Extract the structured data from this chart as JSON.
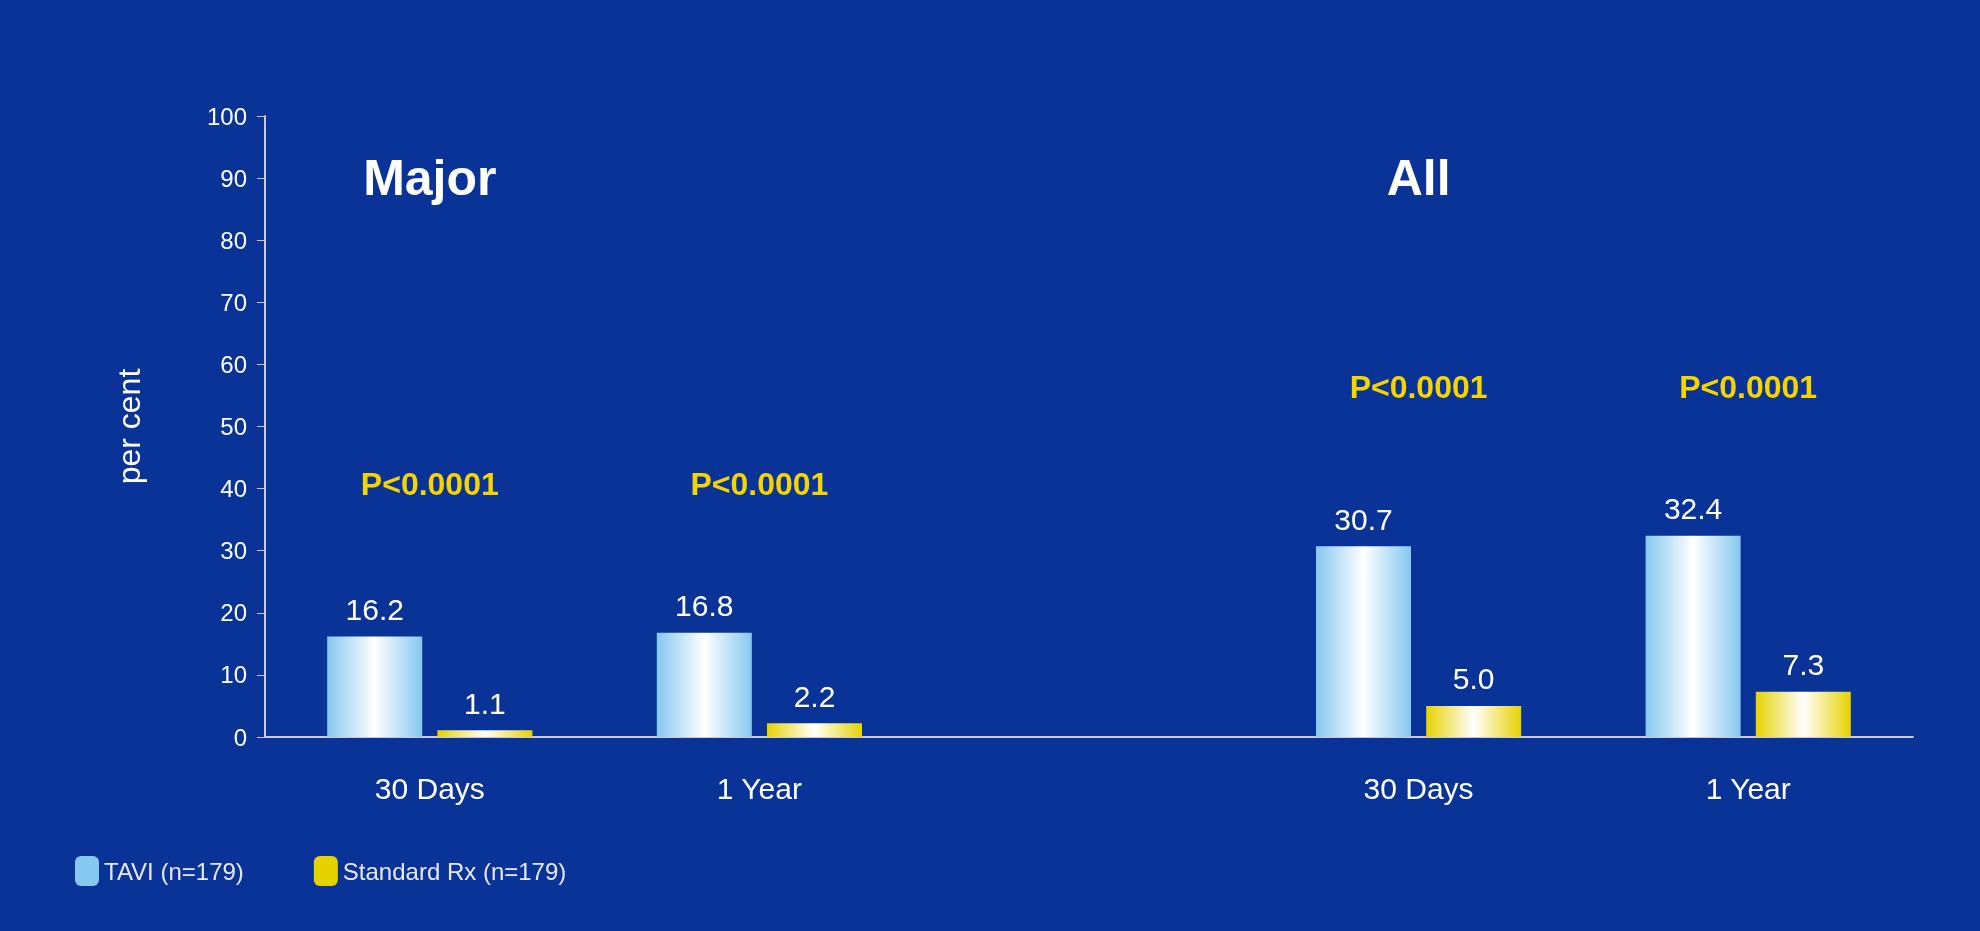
{
  "chart_data": {
    "type": "bar",
    "ylabel": "per cent",
    "categories": [
      "30 Days",
      "1 Year",
      null,
      "30 Days",
      "1 Year"
    ],
    "series": [
      {
        "name": "TAVI (n=179)",
        "color": "#86c8f0",
        "values": [
          16.2,
          16.8,
          null,
          30.7,
          32.4
        ],
        "value_labels": [
          "16.2",
          "16.8",
          null,
          "30.7",
          "32.4"
        ]
      },
      {
        "name": "Standard Rx (n=179)",
        "color": "#e6d200",
        "values": [
          1.1,
          2.2,
          null,
          5.0,
          7.3
        ],
        "value_labels": [
          "1.1",
          "2.2",
          null,
          "5.0",
          "7.3"
        ]
      }
    ],
    "ylim": [
      0,
      100
    ],
    "yticks": [
      0,
      10,
      20,
      30,
      40,
      50,
      60,
      70,
      80,
      90,
      100
    ],
    "grid": false,
    "legend": "bottom left",
    "annotations": [
      "Major",
      "All",
      "P<0.0001",
      "P<0.0001",
      "P<0.0001",
      "P<0.0001"
    ]
  }
}
